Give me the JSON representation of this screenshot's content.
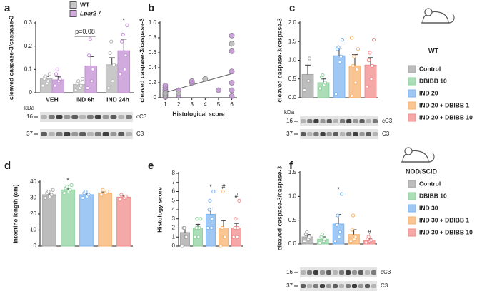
{
  "chart_data": [
    {
      "type": "bar",
      "panel": "a",
      "ylabel": "cleaved caspase-3/caspase-3",
      "legend": "top",
      "categories": [
        "VEH",
        "IND 6h",
        "IND 24h"
      ],
      "series": [
        {
          "name": "WT",
          "color": "#b5b5b5",
          "values": [
            0.06,
            0.035,
            0.12
          ],
          "errors": [
            0.01,
            0.015,
            0.03
          ],
          "points": [
            [
              0.03,
              0.04,
              0.05,
              0.06,
              0.07,
              0.08
            ],
            [
              0.01,
              0.02,
              0.03,
              0.04,
              0.05,
              0.06
            ],
            [
              0.02,
              0.05,
              0.12,
              0.17,
              0.22
            ]
          ]
        },
        {
          "name": "Lpar2-/-",
          "style": "italic",
          "color": "#c18fd3",
          "values": [
            0.055,
            0.115,
            0.18
          ],
          "errors": [
            0.015,
            0.04,
            0.05
          ],
          "points": [
            [
              0.03,
              0.05,
              0.06,
              0.08,
              0.1
            ],
            [
              0.02,
              0.05,
              0.1,
              0.16,
              0.23
            ],
            [
              0.08,
              0.1,
              0.16,
              0.22,
              0.25,
              0.29
            ]
          ]
        }
      ],
      "ylim": [
        0,
        0.3
      ],
      "yticks": [
        0,
        0.1,
        0.2,
        0.3
      ],
      "annotations": [
        {
          "text": "p=0.08",
          "at": "IND 6h"
        },
        {
          "text": "*",
          "at": "IND 24h",
          "series": "Lpar2-/-"
        }
      ],
      "blot": {
        "unit": "kDa",
        "rows": [
          {
            "size": "16",
            "band": "cC3"
          },
          {
            "size": "37",
            "band": "C3"
          }
        ]
      }
    },
    {
      "type": "scatter",
      "panel": "b",
      "ylabel": "cleaved caspase-3/caspase-3",
      "xlabel": "Histological score",
      "series": [
        {
          "color": "#c18fd3",
          "x": [
            1,
            1,
            1,
            1,
            1,
            1,
            2,
            2,
            3,
            3,
            5,
            6,
            6,
            6,
            6,
            6,
            6
          ],
          "y": [
            0.01,
            0.04,
            0.07,
            0.1,
            0.13,
            0.16,
            0.03,
            0.1,
            0.2,
            0.22,
            0.1,
            0.02,
            0.1,
            0.2,
            0.35,
            0.62,
            0.83
          ]
        },
        {
          "color": "#b5b5b5",
          "x": [
            1,
            1,
            2,
            4,
            6
          ],
          "y": [
            0.03,
            0.06,
            0.06,
            0.25,
            0.72
          ]
        }
      ],
      "trend": {
        "x": [
          1,
          6
        ],
        "y": [
          0.07,
          0.32
        ]
      },
      "xlim": [
        0.6,
        6.4
      ],
      "xticks": [
        1,
        2,
        3,
        4,
        5,
        6
      ],
      "ylim": [
        0,
        1
      ],
      "yticks": [
        0,
        {
          "value": 0.2,
          "label": "0.2"
        },
        {
          "value": 0.4,
          "label": "0.4"
        },
        {
          "value": 0.6,
          "label": "0.6"
        },
        {
          "value": 0.8,
          "label": "0.8"
        },
        {
          "value": 1,
          "label": "1.0"
        }
      ]
    },
    {
      "type": "bar",
      "panel": "c",
      "ylabel": "cleaved caspase-3/caspase-3",
      "legend": "right",
      "tag": "WT",
      "categories": [
        "Control",
        "DBIBB 10",
        "IND 20",
        "IND 20 + DBIBB 1",
        "IND 20 + DBIBB 10"
      ],
      "colors": [
        "#a6a6a6",
        "#8fd19e",
        "#7fb5f0",
        "#f7b26e",
        "#f28b8b"
      ],
      "values": [
        0.62,
        0.4,
        1.12,
        0.85,
        0.87
      ],
      "errors": [
        0.25,
        0.1,
        0.2,
        0.3,
        0.2
      ],
      "points": [
        [
          0.2,
          0.45,
          1.05
        ],
        [
          0.25,
          0.35,
          0.4,
          0.55,
          0.6
        ],
        [
          0.1,
          0.95,
          1.1,
          1.3,
          1.35,
          1.55
        ],
        [
          0.05,
          0.4,
          0.75,
          0.85,
          1.1,
          1.3,
          1.6
        ],
        [
          0.3,
          0.5,
          0.85,
          1.0,
          1.2,
          1.55
        ]
      ],
      "ylim": [
        0,
        2
      ],
      "yticks": [
        {
          "value": 0,
          "label": "0.0"
        },
        {
          "value": 0.5,
          "label": "0.5"
        },
        {
          "value": 1,
          "label": "1.0"
        },
        {
          "value": 1.5,
          "label": "1.5"
        },
        {
          "value": 2,
          "label": "2.0"
        }
      ],
      "blot": {
        "unit": "kDa",
        "rows": [
          {
            "size": "16",
            "band": "cC3"
          },
          {
            "size": "37",
            "band": "C3"
          }
        ]
      }
    },
    {
      "type": "bar",
      "panel": "d",
      "ylabel": "Intestine length (cm)",
      "categories": [
        "Control",
        "DBIBB 10",
        "IND 20",
        "IND 20 + DBIBB 1",
        "IND 20 + DBIBB 10"
      ],
      "colors": [
        "#a6a6a6",
        "#8fd19e",
        "#7fb5f0",
        "#f7b26e",
        "#f28b8b"
      ],
      "values": [
        32,
        35,
        32,
        33,
        30.5
      ],
      "errors": [
        1,
        1,
        1,
        0.7,
        0.7
      ],
      "points": [
        [
          30,
          31,
          32,
          33,
          34,
          35
        ],
        [
          33,
          34,
          35,
          36,
          37,
          38
        ],
        [
          30,
          31,
          32,
          33,
          34
        ],
        [
          32,
          33,
          34,
          35
        ],
        [
          29,
          30,
          31,
          32
        ]
      ],
      "ylim": [
        0,
        40
      ],
      "yticks": [
        0,
        10,
        20,
        30,
        40
      ],
      "annotations": [
        {
          "text": "*",
          "at": "DBIBB 10"
        }
      ]
    },
    {
      "type": "bar",
      "panel": "e",
      "ylabel": "Histology score",
      "categories": [
        "Control",
        "DBIBB 10",
        "IND 20",
        "IND 20 + DBIBB 1",
        "IND 20 + DBIBB 10"
      ],
      "colors": [
        "#a6a6a6",
        "#8fd19e",
        "#7fb5f0",
        "#f7b26e",
        "#f28b8b"
      ],
      "values": [
        1.5,
        2,
        3.5,
        2,
        2
      ],
      "errors": [
        0.5,
        0.4,
        0.7,
        0.8,
        0.5
      ],
      "points": [
        [
          0,
          1,
          1,
          2,
          2
        ],
        [
          1,
          1,
          2,
          2,
          3,
          3
        ],
        [
          2,
          2,
          3,
          4,
          5,
          6
        ],
        [
          0,
          1,
          1,
          2,
          6
        ],
        [
          1,
          1,
          2,
          2,
          3,
          5
        ]
      ],
      "ylim": [
        0,
        8
      ],
      "yticks": [
        0,
        1,
        2,
        3,
        4,
        5,
        6,
        7,
        8
      ],
      "annotations": [
        {
          "text": "*",
          "at": "IND 20"
        },
        {
          "text": "#",
          "at": "IND 20 + DBIBB 1"
        },
        {
          "text": "#",
          "at": "IND 20 + DBIBB 10"
        }
      ]
    },
    {
      "type": "bar",
      "panel": "f",
      "ylabel": "cleaved caspase-3/caspase-3",
      "legend": "right",
      "tag": "NOD/SCID",
      "categories": [
        "Control",
        "DBIBB 10",
        "IND 30",
        "IND 30 + DBIBB 1",
        "IND 30 + DBIBB 10"
      ],
      "colors": [
        "#a6a6a6",
        "#8fd19e",
        "#7fb5f0",
        "#f7b26e",
        "#f28b8b"
      ],
      "values": [
        0.15,
        0.1,
        0.42,
        0.2,
        0.08
      ],
      "errors": [
        0.05,
        0.05,
        0.2,
        0.1,
        0.03
      ],
      "points": [
        [
          0.05,
          0.1,
          0.15,
          0.2,
          0.25
        ],
        [
          0.02,
          0.05,
          0.1,
          0.15,
          0.2
        ],
        [
          0.05,
          0.15,
          0.25,
          0.4,
          0.6,
          1.05
        ],
        [
          0.05,
          0.1,
          0.15,
          0.3,
          0.6
        ],
        [
          0.03,
          0.05,
          0.08,
          0.1,
          0.15
        ]
      ],
      "ylim": [
        0,
        1.5
      ],
      "yticks": [
        {
          "value": 0,
          "label": "0.0"
        },
        {
          "value": 0.5,
          "label": "0.5"
        },
        {
          "value": 1,
          "label": "1.0"
        },
        {
          "value": 1.5,
          "label": "1.5"
        }
      ],
      "annotations": [
        {
          "text": "*",
          "at": "IND 30"
        },
        {
          "text": "#",
          "at": "IND 30 + DBIBB 10"
        }
      ],
      "blot": {
        "rows": [
          {
            "size": "16",
            "band": "cC3"
          },
          {
            "size": "37",
            "band": "C3"
          }
        ]
      }
    }
  ]
}
